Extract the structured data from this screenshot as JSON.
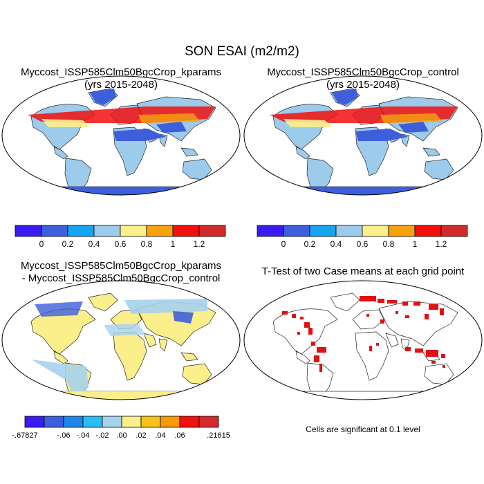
{
  "figure": {
    "title": "SON ESAI (m2/m2)"
  },
  "panels": [
    {
      "id": "kparams",
      "title_line1": "Myccost_ISSP585Clm50BgcCrop_kparams",
      "title_line2": "(yrs 2015-2048)"
    },
    {
      "id": "control",
      "title_line1": "Myccost_ISSP585Clm50BgcCrop_control",
      "title_line2": "(yrs 2015-2048)"
    },
    {
      "id": "difference",
      "title_line1": "Myccost_ISSP585Clm50BgcCrop_kparams",
      "title_line2": "- Myccost_ISSP585Clm50BgcCrop_control"
    },
    {
      "id": "ttest",
      "title_line1": "T-Test of two Case means at each grid point"
    }
  ],
  "colorbar_abs": {
    "colors": [
      "#3a1cf2",
      "#3d5fdc",
      "#16a4f0",
      "#9ccbeb",
      "#fbef8c",
      "#f6a20c",
      "#f2100e",
      "#d12a28"
    ],
    "labels": [
      "0",
      "0.2",
      "0.4",
      "0.6",
      "0.8",
      "1",
      "1.2"
    ]
  },
  "colorbar_diff": {
    "colors": [
      "#3a1cf2",
      "#3d5fdc",
      "#1f86e8",
      "#2cbcf4",
      "#a6d2ee",
      "#fbef8c",
      "#f7c21a",
      "#f69a0a",
      "#f4100e",
      "#d12a28"
    ],
    "labels": [
      ".00",
      ".02",
      ".04",
      ".06"
    ],
    "labels_neg": [
      "-.06",
      "-.04",
      "-.02"
    ],
    "min_label": "-.67827",
    "max_label": ".21615"
  },
  "significance_note": "Cells are significant at 0.1 level",
  "sig_color": "#e21010"
}
